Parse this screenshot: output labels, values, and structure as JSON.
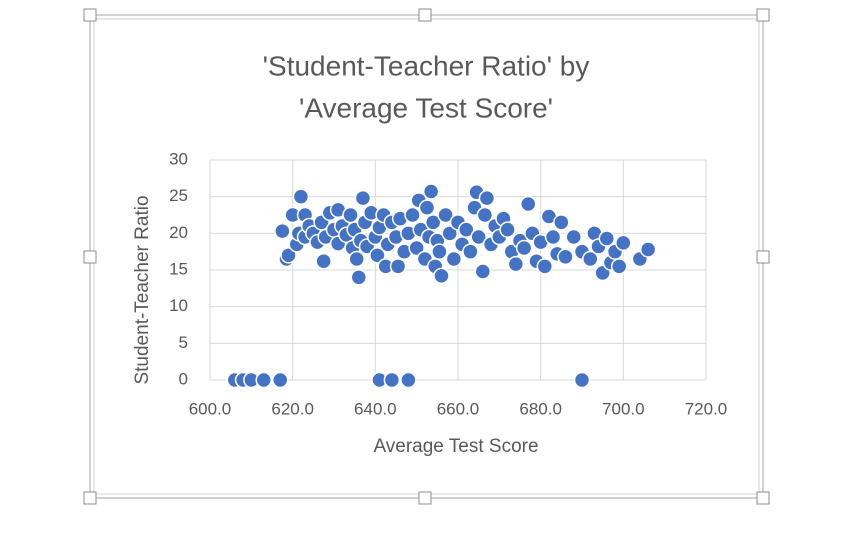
{
  "chart_data": {
    "type": "scatter",
    "title": [
      "'Student-Teacher Ratio' by",
      "'Average Test Score'"
    ],
    "x_label": "Average Test Score",
    "y_label": "Student-Teacher Ratio",
    "xlim": [
      600,
      720
    ],
    "xticks": [
      {
        "value": 600,
        "label": "600.0"
      },
      {
        "value": 620,
        "label": "620.0"
      },
      {
        "value": 640,
        "label": "640.0"
      },
      {
        "value": 660,
        "label": "660.0"
      },
      {
        "value": 680,
        "label": "680.0"
      },
      {
        "value": 700,
        "label": "700.0"
      },
      {
        "value": 720,
        "label": "720.0"
      }
    ],
    "ylim": [
      0,
      30
    ],
    "yticks": [
      0,
      5,
      10,
      15,
      20,
      25,
      30
    ],
    "grid": true,
    "series": [
      {
        "name": "Student-Teacher Ratio",
        "color": "#4472c4",
        "x": [
          606,
          608,
          610,
          613,
          617,
          641,
          644,
          648,
          690,
          617.5,
          618.5,
          619,
          620,
          621,
          621.5,
          622,
          623,
          623,
          624,
          625,
          626,
          627,
          627.5,
          628,
          629,
          630,
          631,
          631,
          632,
          633,
          634,
          634.5,
          635,
          635.5,
          636,
          636.5,
          637,
          637.5,
          638,
          639,
          640,
          640.5,
          641,
          642,
          642.5,
          643,
          644,
          645,
          645.5,
          646,
          647,
          648,
          649,
          650,
          650.5,
          651,
          652,
          652.5,
          653,
          653.5,
          654,
          654.5,
          655,
          655.5,
          656,
          657,
          658,
          659,
          660,
          661,
          662,
          663,
          664,
          664.5,
          665,
          666,
          666.5,
          667,
          668,
          669,
          670,
          671,
          672,
          673,
          674,
          675,
          676,
          677,
          678,
          679,
          680,
          681,
          682,
          683,
          684,
          685,
          686,
          688,
          690,
          692,
          693,
          694,
          695,
          696,
          697,
          698,
          699,
          700,
          704,
          706
        ],
        "values": [
          0,
          0,
          0,
          0,
          0,
          0,
          0,
          0,
          0,
          20.3,
          16.5,
          17,
          22.5,
          18.5,
          20,
          25,
          22.5,
          19.5,
          21,
          20,
          18.8,
          21.5,
          16.2,
          19.5,
          22.8,
          20.5,
          23.2,
          18.6,
          21,
          19.8,
          22.5,
          18,
          20.5,
          16.5,
          14,
          19,
          24.8,
          21.5,
          18.2,
          22.8,
          19.5,
          17,
          20.8,
          22.5,
          15.5,
          18.5,
          21.5,
          19.5,
          15.5,
          22,
          17.5,
          20,
          22.5,
          18,
          24.5,
          20.5,
          16.5,
          23.5,
          19.5,
          25.7,
          21.5,
          15.5,
          19,
          17.5,
          14.2,
          22.5,
          20,
          16.5,
          21.5,
          18.5,
          20.5,
          17.5,
          23.5,
          25.6,
          19.5,
          14.8,
          22.5,
          24.8,
          18.5,
          21,
          19.5,
          22,
          20.5,
          17.5,
          15.8,
          19,
          18,
          24,
          20,
          16.2,
          18.8,
          15.5,
          22.3,
          19.5,
          17.2,
          21.5,
          16.8,
          19.5,
          17.5,
          16.5,
          20,
          18.2,
          14.6,
          19.3,
          16,
          17.5,
          15.5,
          18.7,
          16.5,
          17.8
        ]
      }
    ]
  }
}
